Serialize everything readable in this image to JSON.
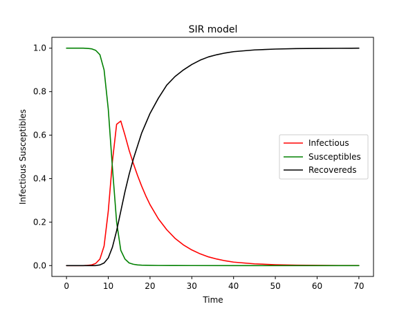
{
  "chart_data": {
    "type": "line",
    "title": "SIR model",
    "xlabel": "Time",
    "ylabel": "Infectious Susceptibles",
    "xlim": [
      -3.5,
      73.5
    ],
    "ylim": [
      -0.05,
      1.05
    ],
    "x_ticks": [
      0,
      10,
      20,
      30,
      40,
      50,
      60,
      70
    ],
    "y_ticks": [
      0.0,
      0.2,
      0.4,
      0.6,
      0.8,
      1.0
    ],
    "x_tick_labels": [
      "0",
      "10",
      "20",
      "30",
      "40",
      "50",
      "60",
      "70"
    ],
    "y_tick_labels": [
      "0.0",
      "0.2",
      "0.4",
      "0.6",
      "0.8",
      "1.0"
    ],
    "grid": false,
    "legend_position": "center-right",
    "series": [
      {
        "name": "Infectious",
        "color": "#ff0000",
        "x": [
          0,
          2,
          4,
          5,
          6,
          7,
          8,
          9,
          10,
          11,
          12,
          13,
          14,
          15,
          16,
          17,
          18,
          19,
          20,
          22,
          24,
          26,
          28,
          30,
          32,
          34,
          36,
          38,
          40,
          45,
          50,
          55,
          60,
          65,
          70
        ],
        "y": [
          0.0,
          0.0,
          0.0,
          0.001,
          0.003,
          0.01,
          0.03,
          0.09,
          0.25,
          0.48,
          0.65,
          0.665,
          0.6,
          0.53,
          0.47,
          0.415,
          0.365,
          0.32,
          0.28,
          0.215,
          0.165,
          0.125,
          0.095,
          0.072,
          0.054,
          0.04,
          0.03,
          0.022,
          0.016,
          0.008,
          0.004,
          0.002,
          0.001,
          0.0005,
          0.0002
        ]
      },
      {
        "name": "Susceptibles",
        "color": "#008000",
        "x": [
          0,
          2,
          4,
          5,
          6,
          7,
          8,
          9,
          10,
          11,
          12,
          13,
          14,
          15,
          16,
          17,
          18,
          20,
          22,
          25,
          30,
          40,
          50,
          60,
          70
        ],
        "y": [
          1.0,
          1.0,
          1.0,
          0.999,
          0.997,
          0.99,
          0.97,
          0.9,
          0.72,
          0.45,
          0.2,
          0.07,
          0.03,
          0.012,
          0.006,
          0.003,
          0.002,
          0.001,
          0.0005,
          0.0002,
          0.0001,
          0.0,
          0.0,
          0.0,
          0.0
        ]
      },
      {
        "name": "Recovereds",
        "color": "#000000",
        "x": [
          0,
          2,
          4,
          5,
          6,
          7,
          8,
          9,
          10,
          11,
          12,
          13,
          14,
          15,
          16,
          17,
          18,
          19,
          20,
          22,
          24,
          26,
          28,
          30,
          32,
          34,
          36,
          38,
          40,
          45,
          50,
          55,
          60,
          65,
          70
        ],
        "y": [
          0.0,
          0.0,
          0.0,
          0.0,
          0.0,
          0.0,
          0.003,
          0.012,
          0.035,
          0.085,
          0.16,
          0.25,
          0.34,
          0.42,
          0.49,
          0.55,
          0.61,
          0.655,
          0.7,
          0.77,
          0.83,
          0.87,
          0.9,
          0.925,
          0.945,
          0.96,
          0.97,
          0.978,
          0.984,
          0.992,
          0.996,
          0.998,
          0.999,
          0.9995,
          1.0
        ]
      }
    ]
  }
}
